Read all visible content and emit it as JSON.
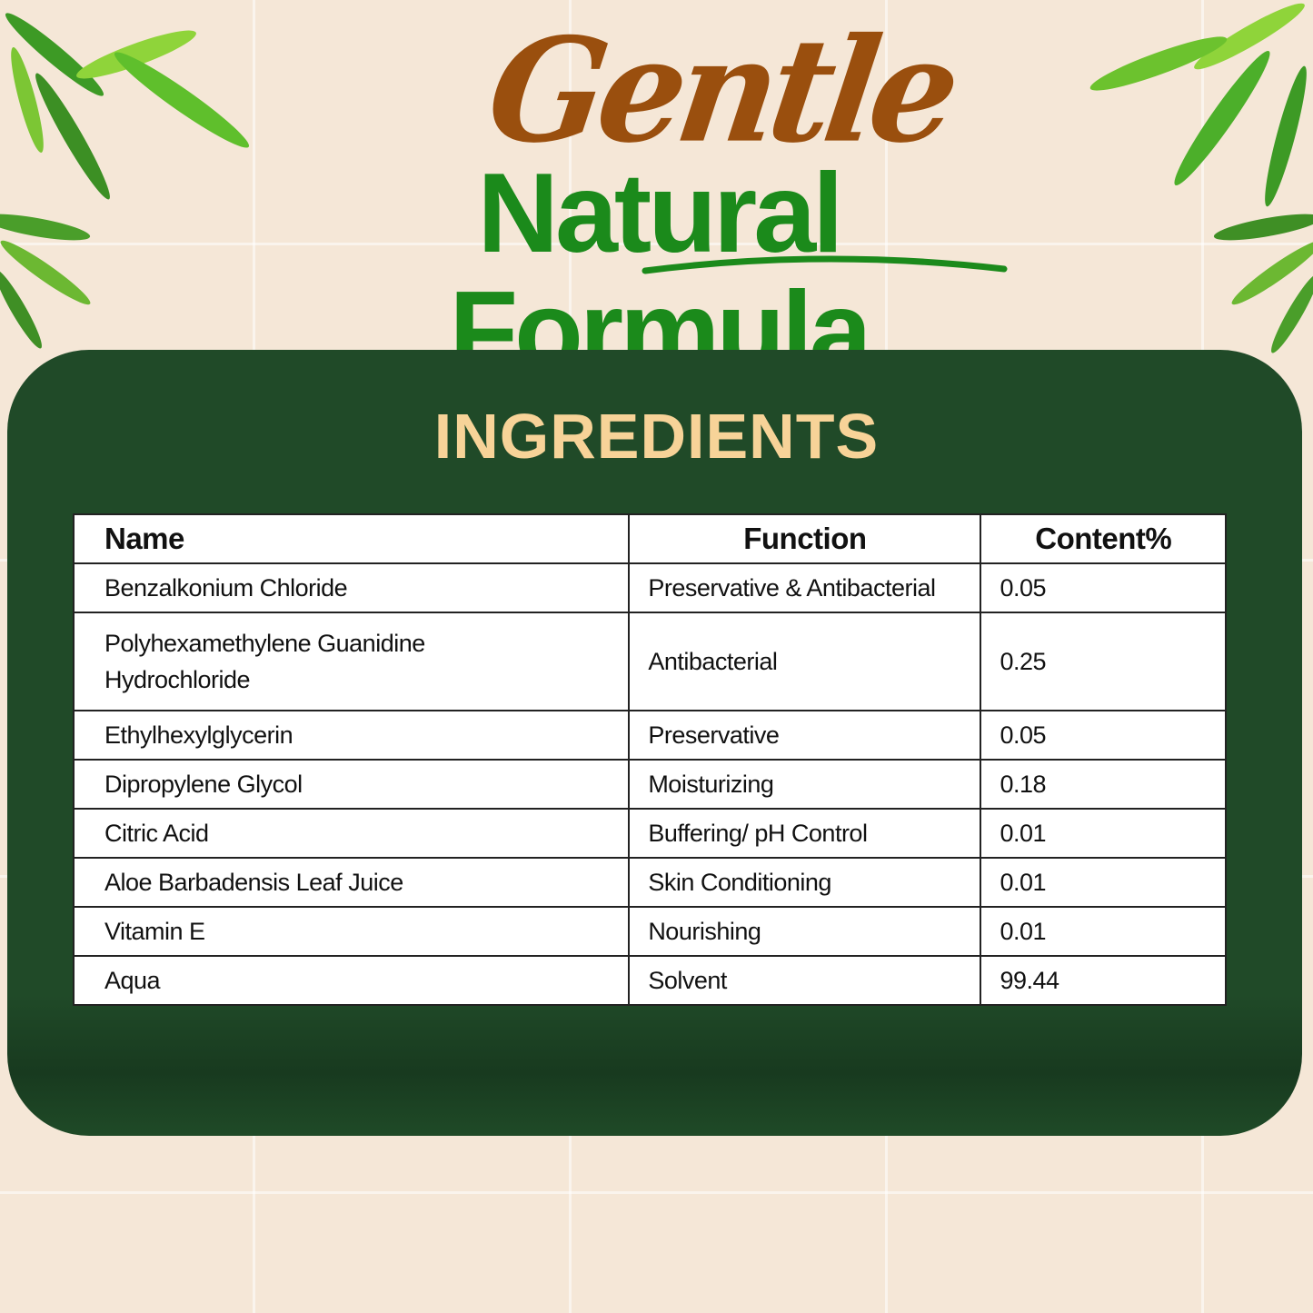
{
  "header": {
    "script_title": "Gentle",
    "main_title": "Natural Formula"
  },
  "panel": {
    "title": "INGREDIENTS"
  },
  "table": {
    "columns": [
      "Name",
      "Function",
      "Content%"
    ],
    "rows": [
      {
        "name": "Benzalkonium Chloride",
        "function": "Preservative & Antibacterial",
        "content": "0.05"
      },
      {
        "name": "Polyhexamethylene Guanidine Hydrochloride",
        "function": "Antibacterial",
        "content": "0.25"
      },
      {
        "name": "Ethylhexylglycerin",
        "function": "Preservative",
        "content": "0.05"
      },
      {
        "name": "Dipropylene Glycol",
        "function": "Moisturizing",
        "content": "0.18"
      },
      {
        "name": "Citric Acid",
        "function": "Buffering/ pH Control",
        "content": "0.01"
      },
      {
        "name": "Aloe Barbadensis Leaf Juice",
        "function": "Skin Conditioning",
        "content": "0.01"
      },
      {
        "name": "Vitamin E",
        "function": "Nourishing",
        "content": "0.01"
      },
      {
        "name": "Aqua",
        "function": "Solvent",
        "content": "99.44"
      }
    ]
  },
  "colors": {
    "background": "#f5e7d7",
    "panel": "#204a28",
    "gentle": "#9a4f0e",
    "natural": "#1b8a1b",
    "ingredients": "#f7d398"
  }
}
